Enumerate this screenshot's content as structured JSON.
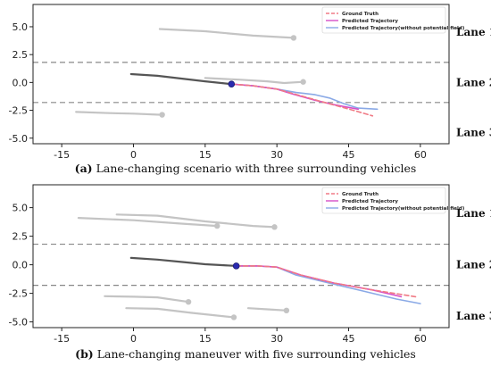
{
  "figure": {
    "colors": {
      "ground_truth": "#f07a85",
      "predicted": "#d64ec8",
      "predicted_no_pf": "#8aa9e6",
      "history": "#555555",
      "surrounding": "#c4c4c4",
      "current_point": "#2a2ab0",
      "lane_boundary": "#888888"
    }
  },
  "chart_data": [
    {
      "type": "line",
      "caption_label": "(a)",
      "caption_text": " Lane-changing scenario with three surrounding vehicles",
      "xticks": [
        -15,
        0,
        15,
        30,
        45,
        60
      ],
      "yticks": [
        5.0,
        2.5,
        0.0,
        -2.5,
        -5.0
      ],
      "xlim": [
        -21,
        66
      ],
      "ylim": [
        -5.5,
        7.0
      ],
      "lane_boundaries": [
        1.8,
        -1.8
      ],
      "lane_labels": [
        {
          "text": "Lane 1",
          "y": 4.5
        },
        {
          "text": "Lane 2",
          "y": 0.0
        },
        {
          "text": "Lane 3",
          "y": -4.5
        }
      ],
      "legend": {
        "position": "top-right",
        "entries": [
          "Ground Truth",
          "Predicted Trajectory",
          "Predicted Trajectory(without potential field)"
        ]
      },
      "series": [
        {
          "role": "history",
          "x": [
            -0.5,
            5,
            10,
            15,
            20.5
          ],
          "y": [
            0.75,
            0.6,
            0.35,
            0.1,
            -0.15
          ]
        },
        {
          "role": "ground_truth",
          "x": [
            20.5,
            25,
            30,
            35,
            40,
            46,
            50
          ],
          "y": [
            -0.15,
            -0.3,
            -0.6,
            -1.2,
            -1.8,
            -2.5,
            -3.0
          ]
        },
        {
          "role": "predicted",
          "x": [
            20.5,
            25,
            30,
            33,
            38,
            42,
            47
          ],
          "y": [
            -0.15,
            -0.3,
            -0.6,
            -1.0,
            -1.6,
            -2.0,
            -2.4
          ]
        },
        {
          "role": "predicted_no_pf",
          "x": [
            20.5,
            25,
            30,
            34,
            38,
            41,
            44,
            47,
            51
          ],
          "y": [
            -0.15,
            -0.3,
            -0.6,
            -0.9,
            -1.1,
            -1.4,
            -1.9,
            -2.3,
            -2.4
          ]
        }
      ],
      "surrounding": [
        {
          "x": [
            5.5,
            15,
            25,
            33.5
          ],
          "y": [
            4.8,
            4.6,
            4.2,
            4.0
          ]
        },
        {
          "x": [
            15,
            22,
            28,
            31.5,
            35.5
          ],
          "y": [
            0.4,
            0.25,
            0.1,
            -0.05,
            0.05
          ]
        },
        {
          "x": [
            -12,
            -5,
            0,
            6
          ],
          "y": [
            -2.65,
            -2.75,
            -2.8,
            -2.9
          ]
        }
      ],
      "current_point": {
        "x": 20.5,
        "y": -0.15
      }
    },
    {
      "type": "line",
      "caption_label": "(b)",
      "caption_text": " Lane-changing maneuver with five surrounding vehicles",
      "xticks": [
        -15,
        0,
        15,
        30,
        45,
        60
      ],
      "yticks": [
        5.0,
        2.5,
        0.0,
        -2.5,
        -5.0
      ],
      "xlim": [
        -21,
        66
      ],
      "ylim": [
        -5.5,
        7.0
      ],
      "lane_boundaries": [
        1.8,
        -1.8
      ],
      "lane_labels": [
        {
          "text": "Lane 1",
          "y": 4.5
        },
        {
          "text": "Lane 2",
          "y": 0.0
        },
        {
          "text": "Lane 3",
          "y": -4.5
        }
      ],
      "legend": {
        "position": "top-right",
        "entries": [
          "Ground Truth",
          "Predicted Trajectory",
          "Predicted Trajectory(without potential field)"
        ]
      },
      "series": [
        {
          "role": "history",
          "x": [
            -0.5,
            5,
            10,
            15,
            21.5
          ],
          "y": [
            0.6,
            0.45,
            0.25,
            0.05,
            -0.1
          ]
        },
        {
          "role": "ground_truth",
          "x": [
            21.5,
            26,
            30,
            35,
            42,
            50,
            59
          ],
          "y": [
            -0.1,
            -0.1,
            -0.2,
            -0.9,
            -1.6,
            -2.2,
            -2.8
          ]
        },
        {
          "role": "predicted",
          "x": [
            21.5,
            26,
            30,
            35,
            42,
            50,
            56
          ],
          "y": [
            -0.1,
            -0.1,
            -0.2,
            -0.9,
            -1.6,
            -2.2,
            -2.8
          ]
        },
        {
          "role": "predicted_no_pf",
          "x": [
            21.5,
            26,
            30,
            34,
            40,
            48,
            55,
            60
          ],
          "y": [
            -0.1,
            -0.1,
            -0.2,
            -0.9,
            -1.5,
            -2.3,
            -3.0,
            -3.4
          ]
        }
      ],
      "surrounding": [
        {
          "x": [
            -11.5,
            0,
            10,
            17.5
          ],
          "y": [
            4.1,
            3.9,
            3.6,
            3.4
          ]
        },
        {
          "x": [
            -3.5,
            5,
            15,
            25,
            29.5
          ],
          "y": [
            4.4,
            4.3,
            3.8,
            3.4,
            3.3
          ]
        },
        {
          "x": [
            -6,
            0,
            5,
            11.5
          ],
          "y": [
            -2.75,
            -2.8,
            -2.85,
            -3.25
          ]
        },
        {
          "x": [
            -1.5,
            5,
            12,
            21
          ],
          "y": [
            -3.8,
            -3.85,
            -4.2,
            -4.6
          ]
        },
        {
          "x": [
            24,
            28,
            32
          ],
          "y": [
            -3.8,
            -3.9,
            -4.0
          ]
        }
      ],
      "current_point": {
        "x": 21.5,
        "y": -0.1
      }
    }
  ]
}
